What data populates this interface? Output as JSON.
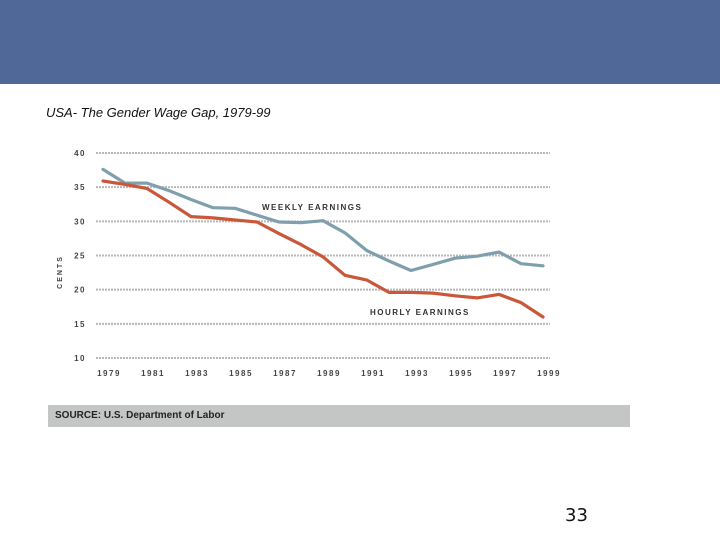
{
  "slide": {
    "title": "USA- The Gender Wage Gap, 1979-99",
    "source": "SOURCE: U.S. Department of Labor",
    "page_number": "33",
    "banner_color": "#4f6898"
  },
  "chart_data": {
    "type": "line",
    "title": "",
    "xlabel": "",
    "ylabel": "CENTS",
    "ylim": [
      10,
      40
    ],
    "xlim": [
      1979,
      1999
    ],
    "grid": true,
    "y_ticks": [
      "10",
      "15",
      "20",
      "25",
      "30",
      "35",
      "40"
    ],
    "x_ticks": [
      "1979",
      "1981",
      "1983",
      "1985",
      "1987",
      "1989",
      "1991",
      "1993",
      "1995",
      "1997",
      "1999"
    ],
    "series": [
      {
        "name": "WEEKLY EARNINGS",
        "color": "#7f9fad",
        "x": [
          1979,
          1980,
          1981,
          1982,
          1983,
          1984,
          1985,
          1986,
          1987,
          1988,
          1989,
          1990,
          1991,
          1992,
          1993,
          1994,
          1995,
          1996,
          1997,
          1998,
          1999
        ],
        "y": [
          37.6,
          35.6,
          35.6,
          34.5,
          33.2,
          32.0,
          31.9,
          30.9,
          29.9,
          29.8,
          30.1,
          28.3,
          25.7,
          24.2,
          22.8,
          23.7,
          24.6,
          24.9,
          25.5,
          23.8,
          23.5
        ]
      },
      {
        "name": "HOURLY EARNINGS",
        "color": "#c9583a",
        "x": [
          1979,
          1980,
          1981,
          1982,
          1983,
          1984,
          1985,
          1986,
          1987,
          1988,
          1989,
          1990,
          1991,
          1992,
          1993,
          1994,
          1995,
          1996,
          1997,
          1998,
          1999
        ],
        "y": [
          35.9,
          35.4,
          34.8,
          32.8,
          30.7,
          30.5,
          30.2,
          29.9,
          28.2,
          26.6,
          24.8,
          22.1,
          21.4,
          19.6,
          19.6,
          19.5,
          19.1,
          18.8,
          19.3,
          18.1,
          16.0
        ]
      }
    ],
    "annotations": [
      {
        "text": "WEEKLY EARNINGS",
        "series": 0
      },
      {
        "text": "HOURLY EARNINGS",
        "series": 1
      }
    ]
  }
}
